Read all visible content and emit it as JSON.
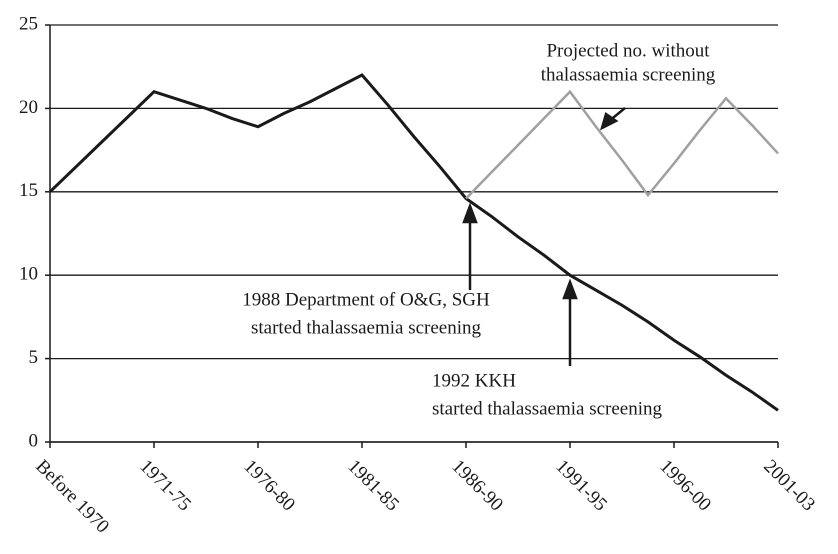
{
  "chart_data": {
    "type": "line",
    "categories": [
      "Before 1970",
      null,
      null,
      null,
      "1971-75",
      null,
      null,
      null,
      "1976-80",
      null,
      null,
      null,
      "1981-85",
      null,
      null,
      null,
      "1986-90",
      null,
      null,
      null,
      "1991-95",
      null,
      null,
      null,
      "1996-00",
      null,
      null,
      null,
      "2001-03"
    ],
    "series": [
      {
        "color": "#1a1a1a",
        "values": [
          15,
          16.5,
          18,
          19.5,
          21,
          20.5,
          20,
          19.4,
          18.9,
          19.7,
          20.4,
          21.2,
          22,
          20.2,
          18.3,
          16.5,
          14.6,
          13.5,
          12.3,
          11.2,
          10,
          9.1,
          8.2,
          7.2,
          6.1,
          5.1,
          4,
          3,
          1.9
        ]
      },
      {
        "color": "#a0a0a0",
        "values": [
          null,
          null,
          null,
          null,
          null,
          null,
          null,
          null,
          null,
          null,
          null,
          null,
          null,
          null,
          null,
          null,
          14.6,
          16.2,
          17.8,
          19.4,
          21,
          18.9,
          16.9,
          14.8,
          16.7,
          18.7,
          20.6,
          19,
          17.3
        ]
      }
    ],
    "ylim": [
      0,
      25
    ],
    "yticks": [
      0,
      5,
      10,
      15,
      20,
      25
    ],
    "grid": true,
    "annotations": [
      [
        "Projected no. without",
        "thalassaemia screening"
      ],
      [
        "1988 Department of O&G, SGH",
        "started thalassaemia screening"
      ],
      [
        "1992 KKH",
        "started thalassaemia screening"
      ]
    ]
  }
}
